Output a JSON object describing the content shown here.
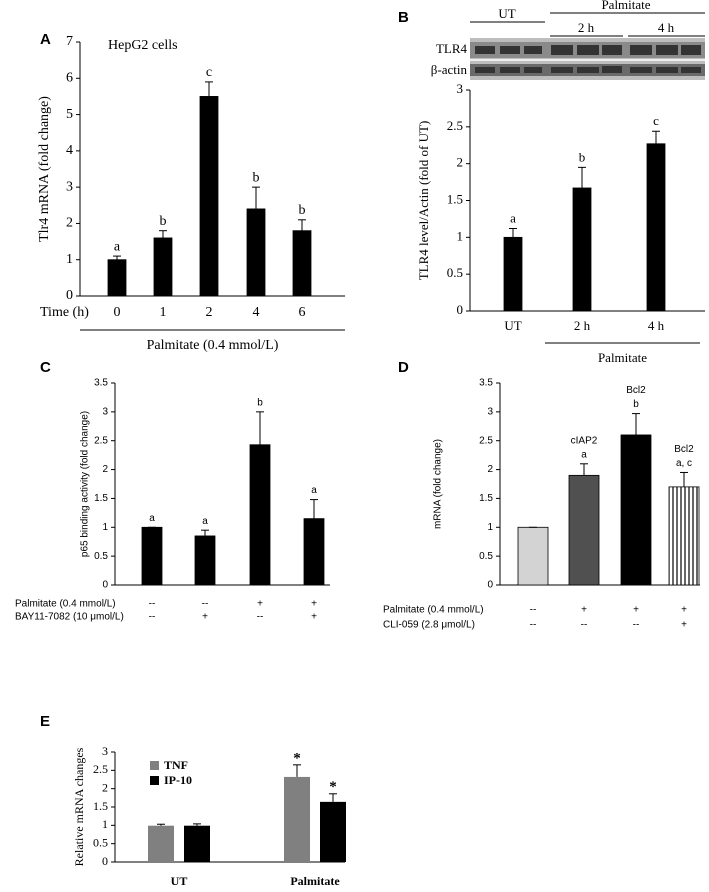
{
  "chart_data": [
    {
      "type": "bar",
      "panel": "A",
      "annotation": "HepG2 cells",
      "y_label": "Tlr4 mRNA (fold change)",
      "x_label": "Time (h)",
      "categories": [
        "0",
        "1",
        "2",
        "4",
        "6"
      ],
      "values": [
        1.0,
        1.6,
        5.5,
        2.4,
        1.8
      ],
      "errors": [
        0.1,
        0.2,
        0.4,
        0.6,
        0.3
      ],
      "letters": [
        "a",
        "b",
        "c",
        "b",
        "b"
      ],
      "group_label": "Palmitate (0.4 mmol/L)",
      "color": "#000000",
      "ylim": [
        0,
        7
      ],
      "yticks": [
        0,
        1,
        2,
        3,
        4,
        5,
        6,
        7
      ]
    },
    {
      "type": "bar",
      "panel": "B",
      "blot": {
        "lanes": [
          "UT",
          "2 h",
          "4 h"
        ],
        "group": "Palmitate",
        "rows": [
          "TLR4",
          "β-actin"
        ]
      },
      "y_label": "TLR4 level/Actin (fold of UT)",
      "categories": [
        "UT",
        "2 h",
        "4 h"
      ],
      "values": [
        1.0,
        1.67,
        2.27
      ],
      "errors": [
        0.12,
        0.28,
        0.17
      ],
      "letters": [
        "a",
        "b",
        "c"
      ],
      "group_label": "Palmitate",
      "color": "#000000",
      "ylim": [
        0,
        3
      ],
      "yticks": [
        0,
        0.5,
        1,
        1.5,
        2,
        2.5,
        3
      ]
    },
    {
      "type": "bar",
      "panel": "C",
      "y_label": "p65 binding activity (fold change)",
      "values": [
        1.0,
        0.85,
        2.43,
        1.15
      ],
      "errors": [
        0,
        0.1,
        0.57,
        0.33
      ],
      "letters": [
        "a",
        "a",
        "b",
        "a"
      ],
      "conditions": [
        {
          "label": "Palmitate (0.4 mmol/L)",
          "values": [
            "--",
            "--",
            "+",
            "+"
          ]
        },
        {
          "label": "BAY11-7082 (10 μmol/L)",
          "values": [
            "--",
            "+",
            "--",
            "+"
          ]
        }
      ],
      "color": "#000000",
      "ylim": [
        0,
        3.5
      ],
      "yticks": [
        0,
        0.5,
        1,
        1.5,
        2,
        2.5,
        3,
        3.5
      ]
    },
    {
      "type": "bar",
      "panel": "D",
      "y_label": "mRNA (fold change)",
      "values": [
        1.0,
        1.9,
        2.6,
        1.7
      ],
      "errors": [
        0,
        0.2,
        0.37,
        0.25
      ],
      "annotations": [
        null,
        [
          "cIAP2",
          "a"
        ],
        [
          "Bcl2",
          "b"
        ],
        [
          "Bcl2",
          "a, c"
        ]
      ],
      "conditions": [
        {
          "label": "Palmitate (0.4 mmol/L)",
          "values": [
            "--",
            "+",
            "+",
            "+"
          ]
        },
        {
          "label": "CLI-059 (2.8 μmol/L)",
          "values": [
            "--",
            "--",
            "--",
            "+"
          ]
        }
      ],
      "colors": [
        "#d3d3d3",
        "#505050",
        "#000000",
        "#ffffff"
      ],
      "patterns": [
        null,
        null,
        null,
        "vertical-lines"
      ],
      "ylim": [
        0,
        3.5
      ],
      "yticks": [
        0,
        0.5,
        1,
        1.5,
        2,
        2.5,
        3,
        3.5
      ]
    },
    {
      "type": "grouped-bar",
      "panel": "E",
      "y_label": "Relative mRNA changes",
      "categories": [
        "UT",
        "Palmitate"
      ],
      "series": [
        {
          "name": "TNF",
          "color": "#808080",
          "values": [
            0.99,
            2.32
          ],
          "errors": [
            0.04,
            0.33
          ],
          "marks": [
            null,
            "*"
          ]
        },
        {
          "name": "IP-10",
          "color": "#000000",
          "values": [
            0.99,
            1.64
          ],
          "errors": [
            0.05,
            0.22
          ],
          "marks": [
            null,
            "*"
          ]
        }
      ],
      "ylim": [
        0,
        3
      ],
      "yticks": [
        0,
        0.5,
        1,
        1.5,
        2,
        2.5,
        3
      ]
    }
  ]
}
